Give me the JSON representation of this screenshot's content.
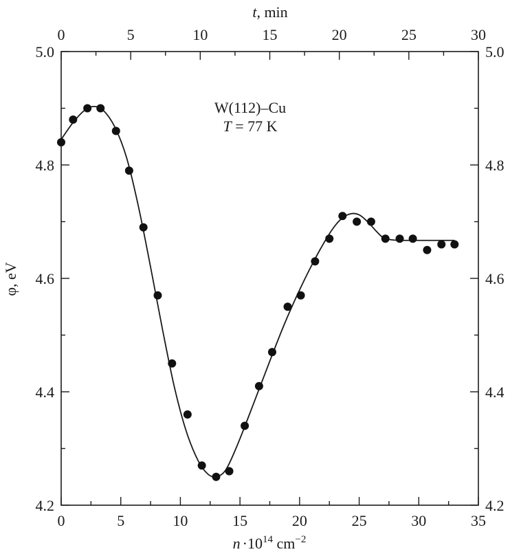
{
  "chart_data": {
    "type": "scatter",
    "annotation": {
      "line1": "W(112)–Cu",
      "line2_var": "T",
      "line2_rest": " = 77 K"
    },
    "xlabel": {
      "var": "n",
      "dot": "·",
      "base": "10",
      "exp": "14",
      "unit": " cm",
      "unit_exp": "−2"
    },
    "x2label": {
      "var": "t",
      "rest": ", min"
    },
    "ylabel": "φ, eV",
    "xlim": [
      0,
      35
    ],
    "x2lim": [
      0,
      30
    ],
    "ylim": [
      4.2,
      5.0
    ],
    "x_ticks": [
      "0",
      "5",
      "10",
      "15",
      "20",
      "25",
      "30",
      "35"
    ],
    "x2_ticks": [
      "0",
      "5",
      "10",
      "15",
      "20",
      "25",
      "30"
    ],
    "y_ticks": [
      "4.2",
      "4.4",
      "4.6",
      "4.8",
      "5.0"
    ],
    "grid": false,
    "series": [
      {
        "kind": "points",
        "x": [
          0.0,
          1.0,
          2.2,
          3.3,
          4.6,
          5.7,
          6.9,
          8.1,
          9.3,
          10.6,
          11.8,
          13.0,
          14.1,
          15.4,
          16.6,
          17.7,
          19.0,
          20.1,
          21.3,
          22.5,
          23.6,
          24.8,
          26.0,
          27.2,
          28.4,
          29.5,
          30.7,
          31.9,
          33.0
        ],
        "y": [
          4.84,
          4.88,
          4.9,
          4.9,
          4.86,
          4.79,
          4.69,
          4.57,
          4.45,
          4.36,
          4.27,
          4.25,
          4.26,
          4.34,
          4.41,
          4.47,
          4.55,
          4.57,
          4.63,
          4.67,
          4.71,
          4.7,
          4.7,
          4.67,
          4.67,
          4.67,
          4.65,
          4.66,
          4.66
        ]
      },
      {
        "kind": "fit-curve",
        "x": [
          0.0,
          1.0,
          2.0,
          2.7,
          3.5,
          4.5,
          5.5,
          6.5,
          7.5,
          8.5,
          9.5,
          10.5,
          11.5,
          12.3,
          13.0,
          13.8,
          14.7,
          15.7,
          16.7,
          17.7,
          18.7,
          19.7,
          20.7,
          21.7,
          22.7,
          23.5,
          24.3,
          25.0,
          25.7,
          26.4,
          27.0,
          27.7,
          28.5,
          30.0,
          31.5,
          33.0
        ],
        "y": [
          4.845,
          4.875,
          4.897,
          4.903,
          4.897,
          4.867,
          4.812,
          4.725,
          4.62,
          4.51,
          4.408,
          4.33,
          4.278,
          4.255,
          4.25,
          4.262,
          4.302,
          4.355,
          4.41,
          4.465,
          4.518,
          4.566,
          4.61,
          4.65,
          4.685,
          4.705,
          4.714,
          4.712,
          4.7,
          4.684,
          4.672,
          4.668,
          4.667,
          4.667,
          4.667,
          4.667
        ]
      }
    ]
  }
}
